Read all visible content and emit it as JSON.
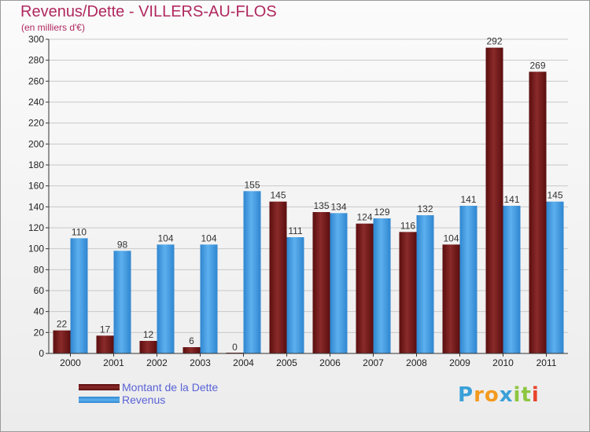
{
  "title": "Revenus/Dette - VILLERS-AU-FLOS",
  "subtitle": "(en milliers d'€)",
  "logo": {
    "text": "Proxiti",
    "letters": [
      {
        "ch": "P",
        "color": "#3aa0d8"
      },
      {
        "ch": "r",
        "color": "#f39a1e"
      },
      {
        "ch": "o",
        "color": "#f39a1e"
      },
      {
        "ch": "x",
        "color": "#3aa0d8"
      },
      {
        "ch": "i",
        "color": "#8cc63f"
      },
      {
        "ch": "t",
        "color": "#8cc63f"
      },
      {
        "ch": "i",
        "color": "#e8452c"
      }
    ]
  },
  "colors": {
    "dette": "#6e1616",
    "revenus": "#3f98e0",
    "axis": "#333333",
    "grid": "#c8c8c8"
  },
  "chart_data": {
    "type": "bar",
    "title": "Revenus/Dette - VILLERS-AU-FLOS",
    "ylabel": "(en milliers d'€)",
    "xlabel": "",
    "ylim": [
      0,
      300
    ],
    "yticks": [
      0,
      20,
      40,
      60,
      80,
      100,
      120,
      140,
      160,
      180,
      200,
      220,
      240,
      260,
      280,
      300
    ],
    "grid": true,
    "legend_position": "bottom-left",
    "categories": [
      "2000",
      "2001",
      "2002",
      "2003",
      "2004",
      "2005",
      "2006",
      "2007",
      "2008",
      "2009",
      "2010",
      "2011"
    ],
    "series": [
      {
        "name": "Montant de la Dette",
        "values": [
          22,
          17,
          12,
          6,
          0,
          145,
          135,
          124,
          116,
          104,
          292,
          269
        ]
      },
      {
        "name": "Revenus",
        "values": [
          110,
          98,
          104,
          104,
          155,
          111,
          134,
          129,
          132,
          141,
          141,
          145
        ]
      }
    ]
  }
}
